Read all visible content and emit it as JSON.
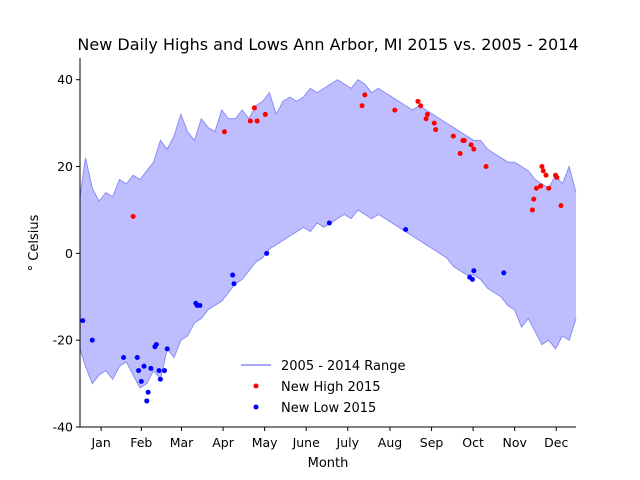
{
  "chart_data": {
    "type": "scatter",
    "title": "New Daily Highs and Lows Ann Arbor, MI 2015 vs. 2005 - 2014",
    "xlabel": "Month",
    "ylabel": "° Celsius",
    "xlim": [
      1,
      365
    ],
    "ylim": [
      -40,
      45
    ],
    "yticks": [
      40,
      20,
      0,
      -20,
      -40
    ],
    "months": [
      "Jan",
      "Feb",
      "Mar",
      "Apr",
      "May",
      "June",
      "July",
      "Aug",
      "Sep",
      "Oct",
      "Nov",
      "Dec"
    ],
    "grid": false,
    "legend_position": "lower-center",
    "colors": {
      "range": "#a8a8ff",
      "range_line": "#8c8cf5",
      "high": "#ff0000",
      "low": "#0000ff"
    },
    "series": [
      {
        "name": "2005 - 2014 Range",
        "kind": "band",
        "x": [
          1,
          5,
          10,
          15,
          20,
          25,
          30,
          35,
          40,
          45,
          50,
          55,
          60,
          65,
          70,
          75,
          80,
          85,
          90,
          95,
          100,
          105,
          110,
          115,
          120,
          125,
          130,
          135,
          140,
          145,
          150,
          155,
          160,
          165,
          170,
          175,
          180,
          185,
          190,
          195,
          200,
          205,
          210,
          215,
          220,
          225,
          230,
          235,
          240,
          245,
          250,
          255,
          260,
          265,
          270,
          275,
          280,
          285,
          290,
          295,
          300,
          305,
          310,
          315,
          320,
          325,
          330,
          335,
          340,
          345,
          350,
          355,
          360,
          365
        ],
        "high": [
          13,
          22,
          15,
          12,
          14,
          13,
          17,
          16,
          18,
          17,
          19,
          21,
          26,
          24,
          27,
          32,
          28,
          26,
          31,
          29,
          28,
          33,
          31,
          31,
          33,
          31,
          34,
          35,
          37,
          32,
          35,
          36,
          35,
          36,
          38,
          37,
          38,
          39,
          40,
          39,
          38,
          40,
          39,
          37,
          38,
          37,
          36,
          35,
          34,
          33,
          34,
          33,
          32,
          31,
          30,
          29,
          28,
          27,
          26,
          26,
          24,
          23,
          22,
          21,
          21,
          20,
          19,
          17,
          16,
          15,
          18,
          16,
          20,
          14
        ],
        "low": [
          -22,
          -26,
          -30,
          -28,
          -27,
          -29,
          -26,
          -25,
          -28,
          -31,
          -30,
          -27,
          -29,
          -22,
          -24,
          -20,
          -19,
          -16,
          -15,
          -13,
          -12,
          -11,
          -9,
          -7,
          -6,
          -4,
          -2,
          -1,
          1,
          2,
          3,
          4,
          5,
          6,
          5,
          7,
          6,
          7,
          8,
          9,
          8,
          10,
          9,
          8,
          9,
          8,
          7,
          6,
          5,
          4,
          3,
          2,
          1,
          0,
          -1,
          -3,
          -4,
          -5,
          -5,
          -6,
          -8,
          -9,
          -10,
          -12,
          -13,
          -17,
          -15,
          -18,
          -21,
          -20,
          -22,
          -19,
          -20,
          -15
        ]
      },
      {
        "name": "New High 2015",
        "kind": "points",
        "x": [
          40,
          107,
          126,
          129,
          131,
          137,
          208,
          210,
          232,
          249,
          251,
          255,
          256,
          261,
          262,
          275,
          280,
          282,
          283,
          288,
          290,
          299,
          333,
          334,
          336,
          339,
          340,
          341,
          343,
          345,
          350,
          351,
          354
        ],
        "y": [
          8.5,
          28,
          30.5,
          33.5,
          30.5,
          32,
          34,
          36.5,
          33,
          35,
          34,
          31,
          32,
          30,
          28.5,
          27,
          23,
          26,
          26,
          25,
          24,
          20,
          10,
          12.5,
          15,
          15.5,
          20,
          19,
          18,
          15,
          18,
          17.5,
          11
        ]
      },
      {
        "name": "New Low 2015",
        "kind": "points",
        "x": [
          3,
          10,
          33,
          43,
          44,
          46,
          48,
          50,
          51,
          53,
          56,
          57,
          59,
          60,
          63,
          65,
          86,
          87,
          89,
          113,
          114,
          138,
          184,
          240,
          287,
          289,
          290,
          312
        ],
        "y": [
          -15.5,
          -20,
          -24,
          -24,
          -27,
          -29.5,
          -26,
          -34,
          -32,
          -26.5,
          -21.5,
          -21,
          -27,
          -29,
          -27,
          -22,
          -11.5,
          -12,
          -12,
          -5,
          -7,
          0,
          7,
          5.5,
          -5.5,
          -6,
          -4,
          -4.5
        ]
      }
    ]
  }
}
